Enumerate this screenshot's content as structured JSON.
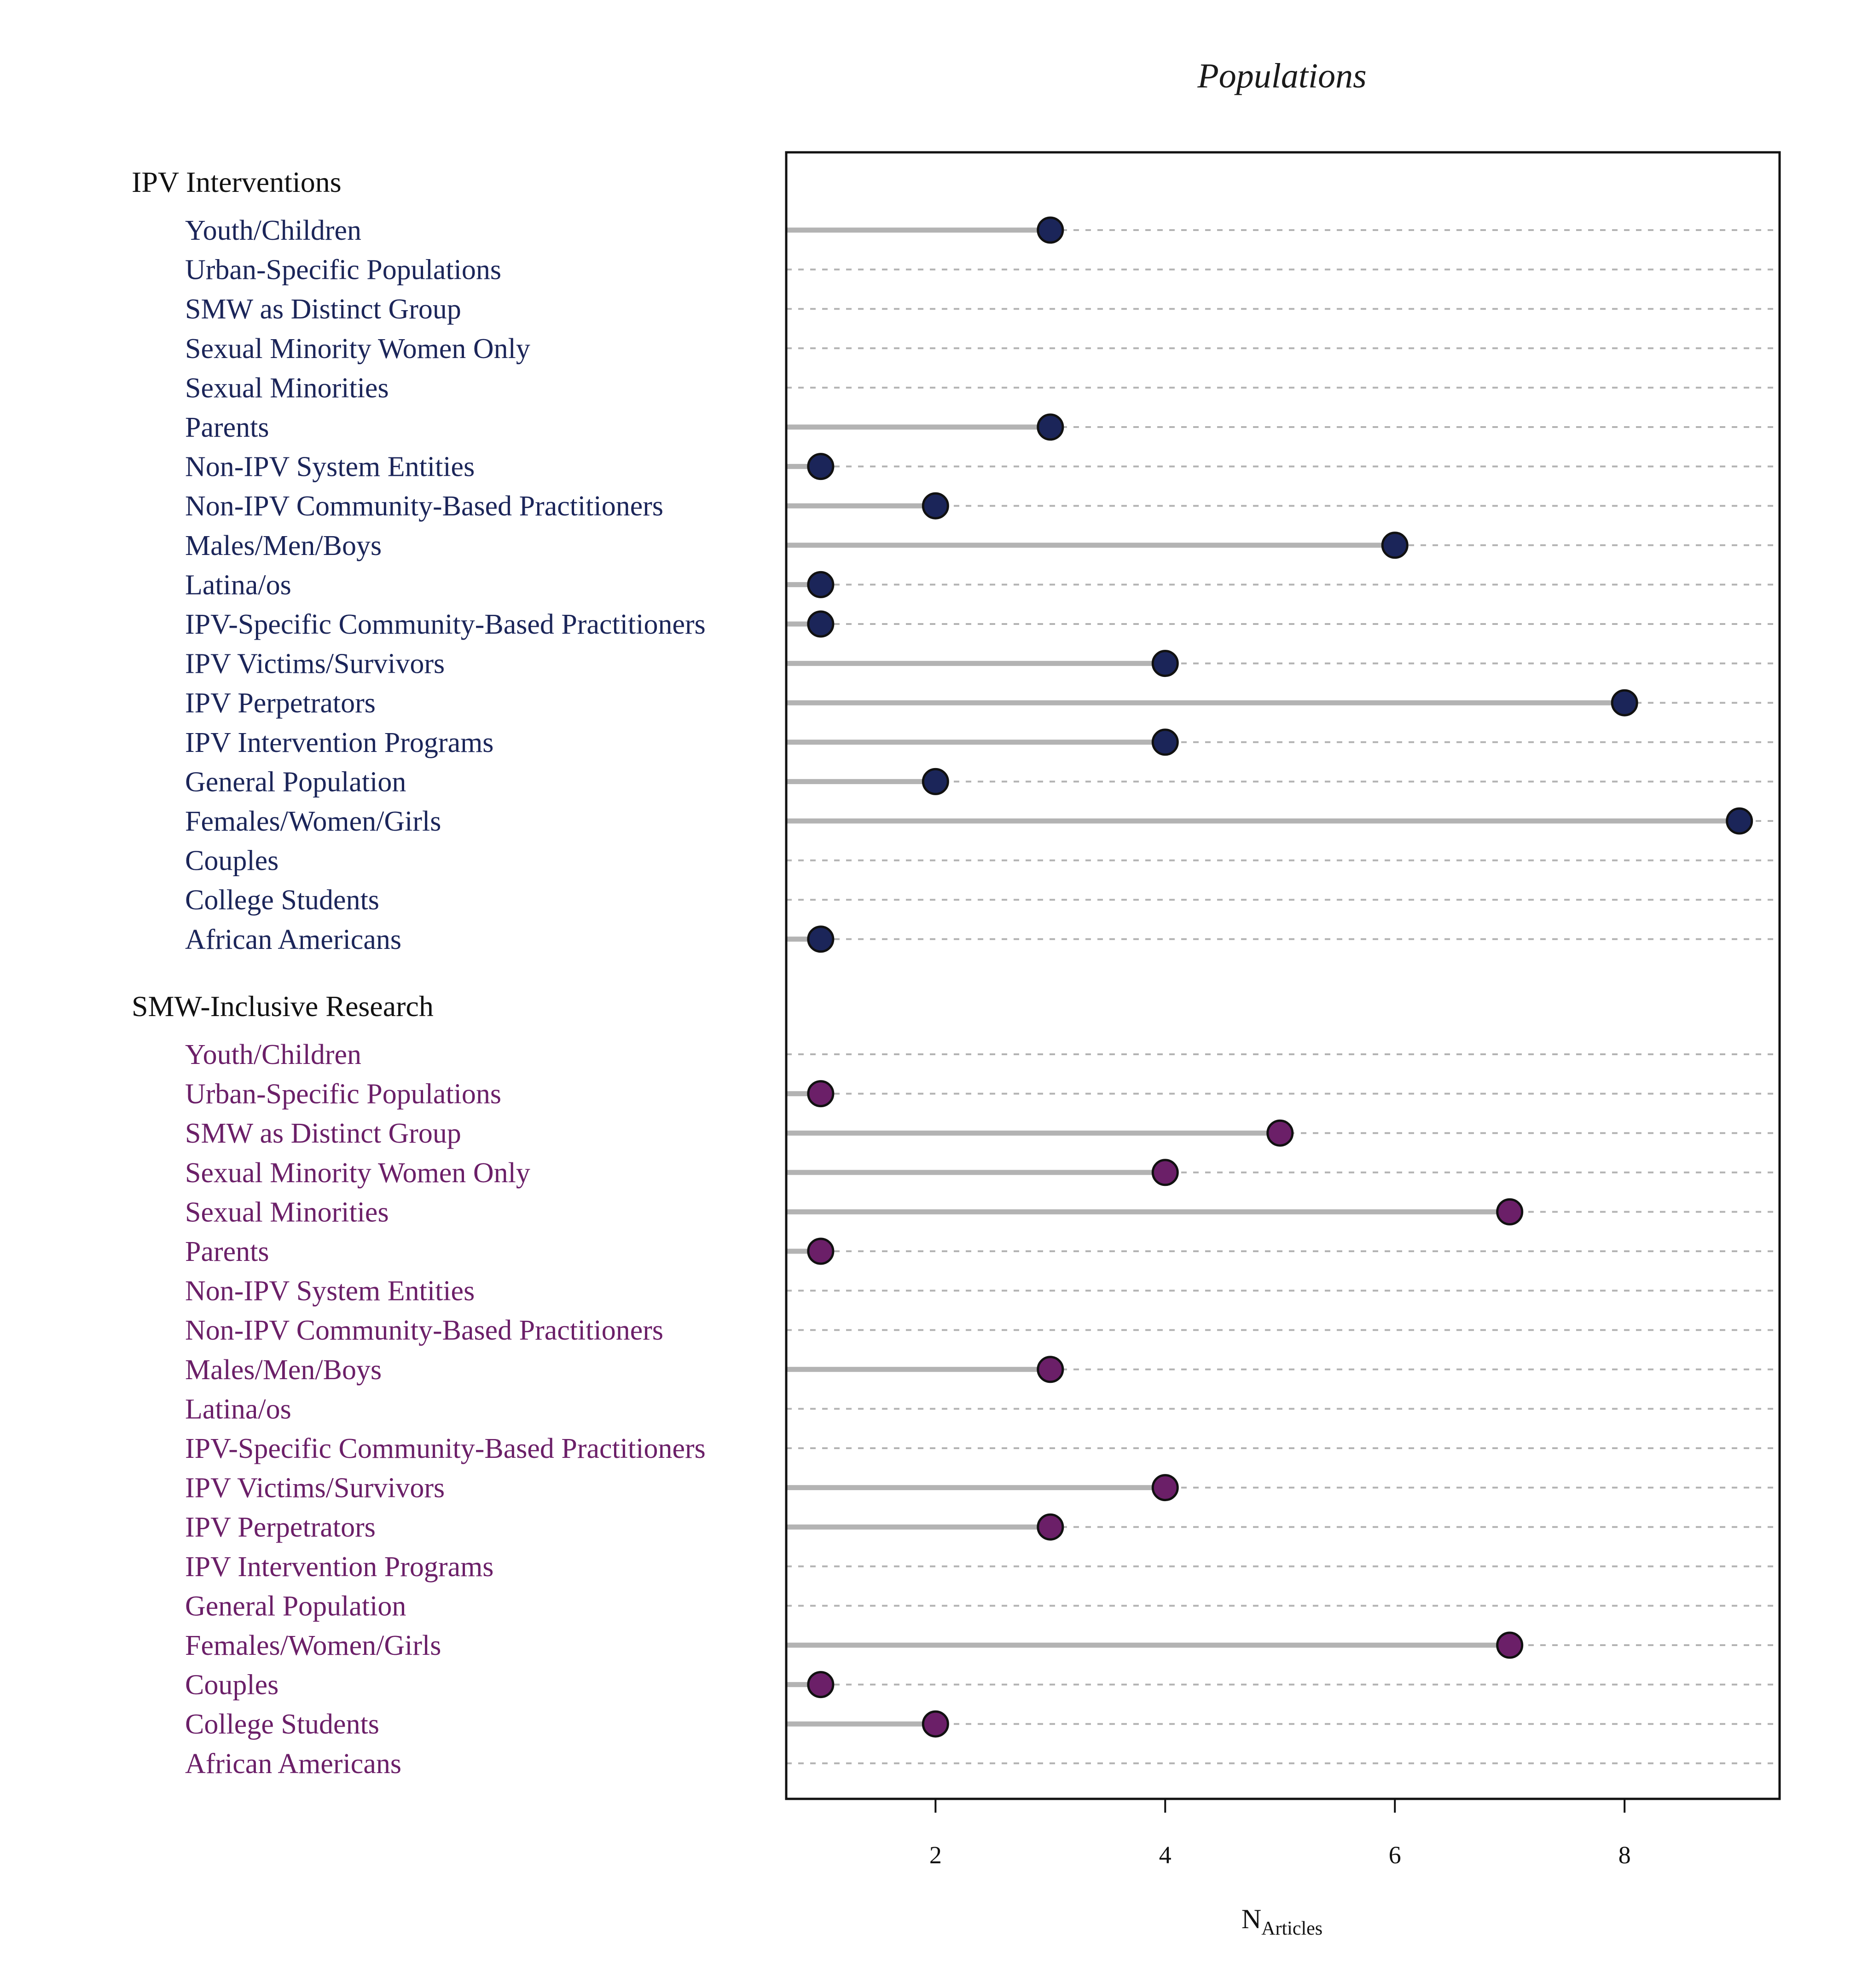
{
  "chart_data": {
    "type": "lollipop",
    "title": "Populations",
    "xlabel": "N",
    "xlabel_subscript": "Articles",
    "xlim": [
      0.7,
      9.35
    ],
    "xticks": [
      2,
      4,
      6,
      8
    ],
    "xtick_labels": [
      "2",
      "4",
      "6",
      "8"
    ],
    "grid": "dashed horizontal guides per row",
    "categories": [
      "Youth/Children",
      "Urban-Specific Populations",
      "SMW as Distinct Group",
      "Sexual Minority Women Only",
      "Sexual Minorities",
      "Parents",
      "Non-IPV System Entities",
      "Non-IPV Community-Based Practitioners",
      "Males/Men/Boys",
      "Latina/os",
      "IPV-Specific Community-Based Practitioners",
      "IPV Victims/Survivors",
      "IPV Perpetrators",
      "IPV Intervention Programs",
      "General Population",
      "Females/Women/Girls",
      "Couples",
      "College Students",
      "African Americans"
    ],
    "groups": [
      {
        "name": "IPV Interventions",
        "color": "#1b2559",
        "values": [
          3,
          null,
          null,
          null,
          null,
          3,
          1,
          2,
          6,
          1,
          1,
          4,
          8,
          4,
          2,
          9,
          null,
          null,
          1
        ]
      },
      {
        "name": "SMW-Inclusive Research",
        "color": "#6b1f68",
        "values": [
          null,
          1,
          5,
          4,
          7,
          1,
          null,
          null,
          3,
          null,
          null,
          4,
          3,
          null,
          null,
          7,
          1,
          2,
          null
        ]
      }
    ]
  }
}
